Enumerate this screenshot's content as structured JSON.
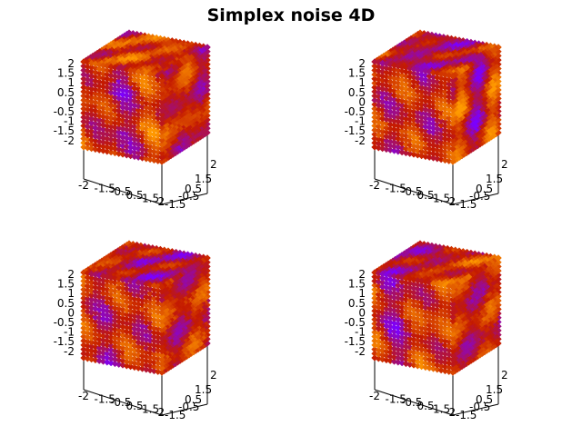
{
  "title": "Simplex noise 4D",
  "chart_data": [
    {
      "type": "scatter3d",
      "panel": "top-left",
      "x_ticks": [
        "-2",
        "-1.5",
        "-0.5",
        "0.5",
        "1.5",
        "2"
      ],
      "y_ticks": [
        "-1.5",
        "-0.5",
        "0.5",
        "1.5",
        "2"
      ],
      "z_ticks": [
        "2",
        "1.5",
        "1",
        "0.5",
        "0",
        "-0.5",
        "-1",
        "-1.5",
        "-2"
      ],
      "xlim": [
        -2,
        2
      ],
      "ylim": [
        -2,
        2
      ],
      "zlim": [
        -2,
        2
      ],
      "grid": false,
      "colormap": [
        "#7b00ff",
        "#c41a00",
        "#ff9a00"
      ],
      "seed": 11
    },
    {
      "type": "scatter3d",
      "panel": "top-right",
      "x_ticks": [
        "-2",
        "-1.5",
        "-0.5",
        "0.5",
        "1.5",
        "2"
      ],
      "y_ticks": [
        "-1.5",
        "-0.5",
        "0.5",
        "1.5",
        "2"
      ],
      "z_ticks": [
        "2",
        "1.5",
        "1",
        "0.5",
        "0",
        "-0.5",
        "-1",
        "-1.5",
        "-2"
      ],
      "xlim": [
        -2,
        2
      ],
      "ylim": [
        -2,
        2
      ],
      "zlim": [
        -2,
        2
      ],
      "grid": false,
      "colormap": [
        "#7b00ff",
        "#c41a00",
        "#ff9a00"
      ],
      "seed": 23
    },
    {
      "type": "scatter3d",
      "panel": "bottom-left",
      "x_ticks": [
        "-2",
        "-1.5",
        "-0.5",
        "0.5",
        "1.5",
        "2"
      ],
      "y_ticks": [
        "-1.5",
        "-0.5",
        "0.5",
        "1.5",
        "2"
      ],
      "z_ticks": [
        "2",
        "1.5",
        "1",
        "0.5",
        "0",
        "-0.5",
        "-1",
        "-1.5",
        "-2"
      ],
      "xlim": [
        -2,
        2
      ],
      "ylim": [
        -2,
        2
      ],
      "zlim": [
        -2,
        2
      ],
      "grid": false,
      "colormap": [
        "#7b00ff",
        "#c41a00",
        "#ff9a00"
      ],
      "seed": 37
    },
    {
      "type": "scatter3d",
      "panel": "bottom-right",
      "x_ticks": [
        "-2",
        "-1.5",
        "-0.5",
        "0.5",
        "1.5",
        "2"
      ],
      "y_ticks": [
        "-1.5",
        "-0.5",
        "0.5",
        "1.5",
        "2"
      ],
      "z_ticks": [
        "2",
        "1.5",
        "1",
        "0.5",
        "0",
        "-0.5",
        "-1",
        "-1.5",
        "-2"
      ],
      "xlim": [
        -2,
        2
      ],
      "ylim": [
        -2,
        2
      ],
      "zlim": [
        -2,
        2
      ],
      "grid": false,
      "colormap": [
        "#7b00ff",
        "#c41a00",
        "#ff9a00"
      ],
      "seed": 53
    }
  ]
}
